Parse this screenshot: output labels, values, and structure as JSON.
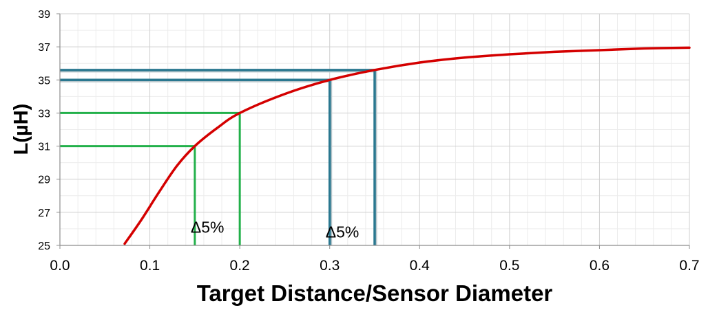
{
  "chart_data": {
    "type": "line",
    "xlabel": "Target Distance/Sensor Diameter",
    "ylabel": "L(µH)",
    "xlim": [
      0.0,
      0.7
    ],
    "ylim": [
      25,
      39
    ],
    "x_ticks": [
      "0.0",
      "0.1",
      "0.2",
      "0.3",
      "0.4",
      "0.5",
      "0.6",
      "0.7"
    ],
    "y_ticks": [
      "25",
      "27",
      "29",
      "31",
      "33",
      "35",
      "37",
      "39"
    ],
    "grid": true,
    "minor_grid": true,
    "series": [
      {
        "color": "#d40000",
        "x": [
          0.072,
          0.09,
          0.11,
          0.13,
          0.15,
          0.175,
          0.2,
          0.25,
          0.3,
          0.35,
          0.4,
          0.45,
          0.5,
          0.55,
          0.6,
          0.65,
          0.7
        ],
        "y": [
          25.1,
          26.5,
          28.2,
          29.8,
          31.0,
          32.1,
          33.0,
          34.15,
          35.0,
          35.6,
          36.05,
          36.35,
          36.55,
          36.7,
          36.8,
          36.9,
          36.95
        ]
      }
    ],
    "reference_lines": [
      {
        "color": "#22b04a",
        "x": 0.15,
        "y": 31
      },
      {
        "color": "#22b04a",
        "x": 0.2,
        "y": 33
      },
      {
        "color": "#2a7890",
        "x": 0.3,
        "y": 35
      },
      {
        "color": "#2a7890",
        "x": 0.35,
        "y": 35.6
      }
    ],
    "annotations": [
      {
        "text": "Δ5%",
        "x": 0.15,
        "y": 26.1
      },
      {
        "text": "Δ5%",
        "x": 0.3,
        "y": 25.8
      }
    ]
  }
}
